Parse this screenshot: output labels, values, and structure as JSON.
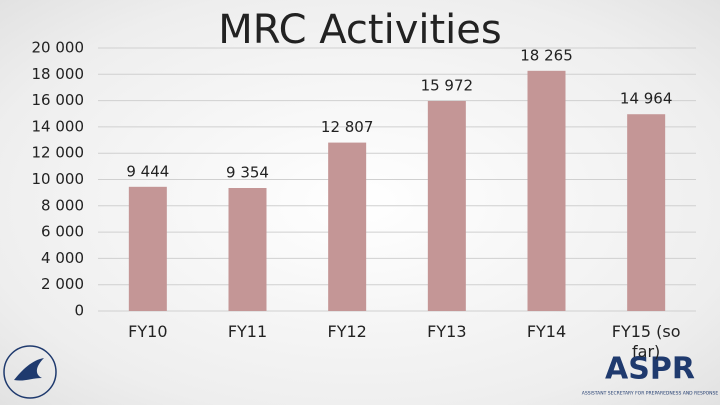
{
  "chart_data": {
    "type": "bar",
    "title": "MRC Activities",
    "categories": [
      "FY10",
      "FY11",
      "FY12",
      "FY13",
      "FY14",
      "FY15 (so far)"
    ],
    "values": [
      9444,
      9354,
      12807,
      15972,
      18265,
      14964
    ],
    "value_labels": [
      "9 444",
      "9 354",
      "12 807",
      "15 972",
      "18 265",
      "14 964"
    ],
    "color": "#c49696",
    "ylim": [
      0,
      20000
    ],
    "yticks": [
      {
        "value": 0,
        "label": "0"
      },
      {
        "value": 2000,
        "label": "2 000"
      },
      {
        "value": 4000,
        "label": "4 000"
      },
      {
        "value": 6000,
        "label": "6 000"
      },
      {
        "value": 8000,
        "label": "8 000"
      },
      {
        "value": 10000,
        "label": "10 000"
      },
      {
        "value": 12000,
        "label": "12 000"
      },
      {
        "value": 14000,
        "label": "14 000"
      },
      {
        "value": 16000,
        "label": "16 000"
      },
      {
        "value": 18000,
        "label": "18 000"
      },
      {
        "value": 20000,
        "label": "20 000"
      }
    ],
    "grid": true
  },
  "logo": {
    "text": "ASPR",
    "subtitle": "ASSISTANT SECRETARY FOR PREPAREDNESS AND RESPONSE"
  }
}
